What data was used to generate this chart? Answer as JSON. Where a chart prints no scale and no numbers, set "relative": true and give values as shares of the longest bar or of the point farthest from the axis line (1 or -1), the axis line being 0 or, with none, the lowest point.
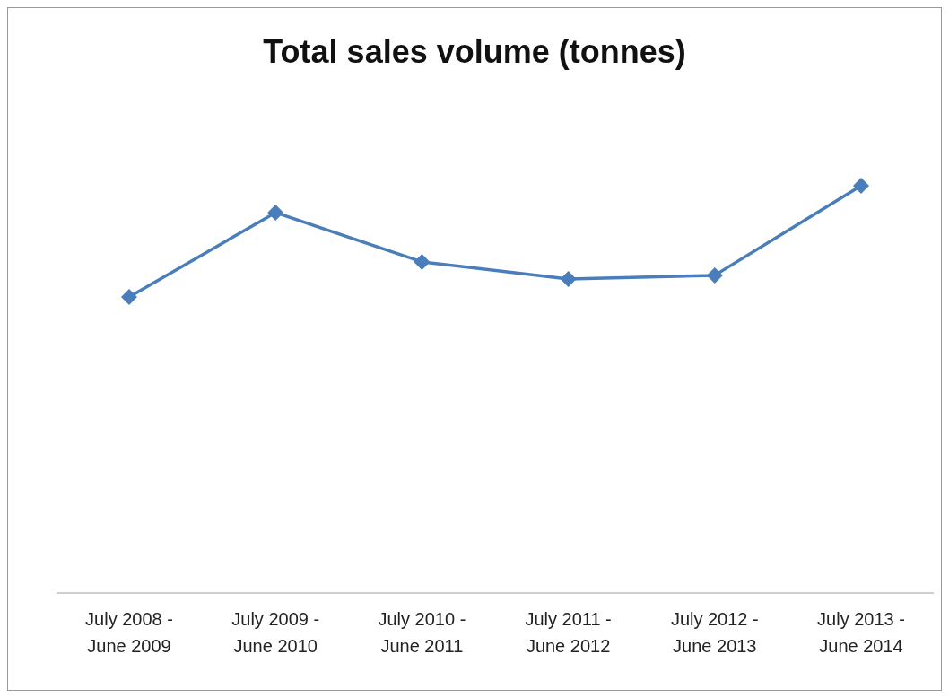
{
  "chart_data": {
    "type": "line",
    "title": "Total sales volume (tonnes)",
    "categories": [
      "July 2008 - June 2009",
      "July 2009 - June 2010",
      "July 2010 - June 2011",
      "July 2011 - June 2012",
      "July 2012 - June 2013",
      "July 2013 - June 2014"
    ],
    "relative": true,
    "series": [
      {
        "color": "#4a7ebb",
        "values": [
          0.727,
          0.934,
          0.813,
          0.771,
          0.78,
          1
        ]
      }
    ],
    "marker": "diamond",
    "line_style": "solid",
    "grid": false,
    "legend": false
  }
}
